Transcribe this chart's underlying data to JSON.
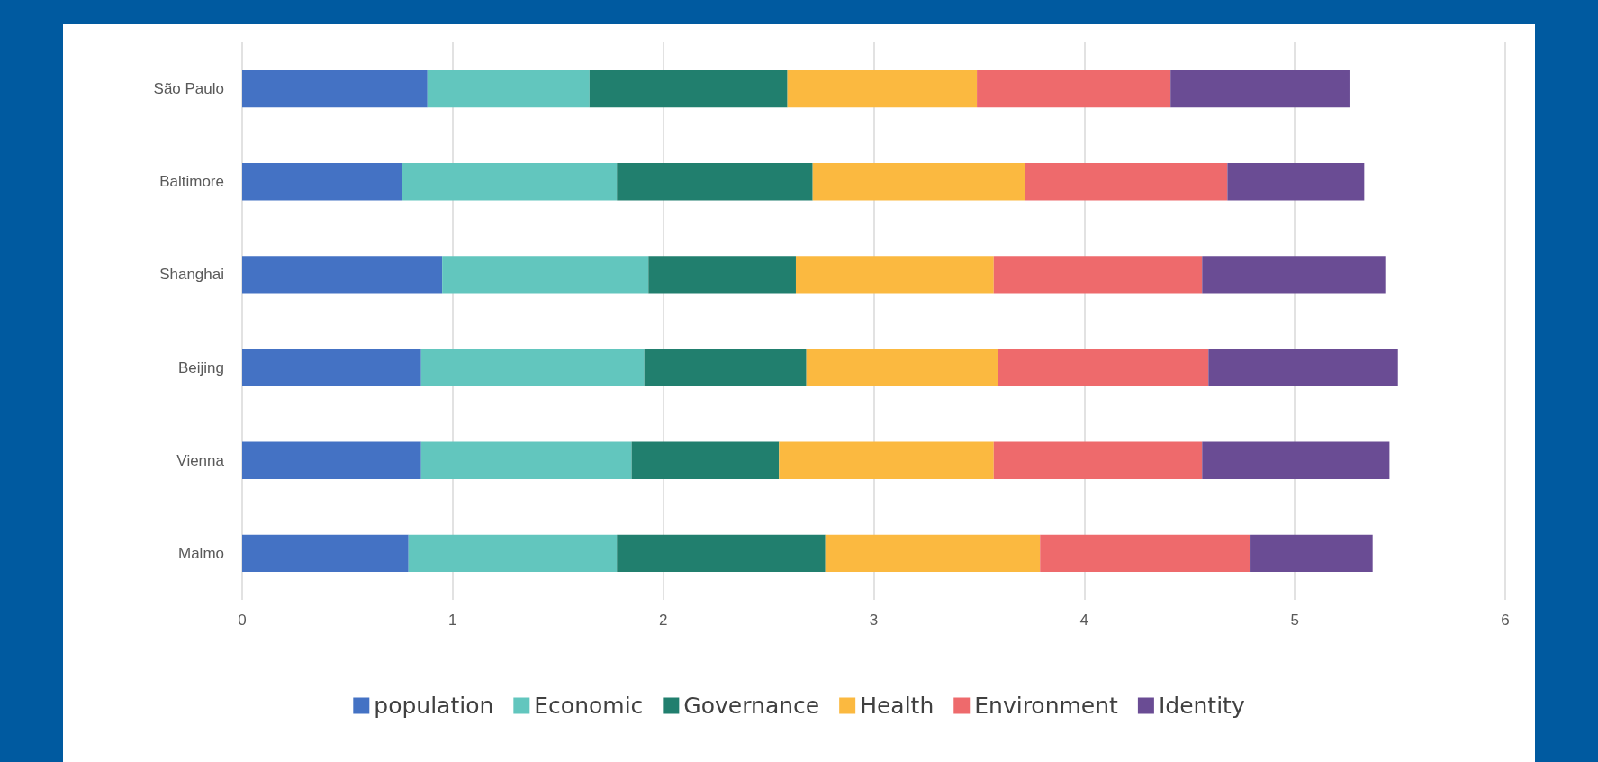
{
  "chart_data": {
    "type": "bar",
    "orientation": "horizontal",
    "stacked": true,
    "categories": [
      "São Paulo",
      "Baltimore",
      "Shanghai",
      "Beijing",
      "Vienna",
      "Malmo"
    ],
    "series": [
      {
        "name": "population",
        "color": "#4472c4",
        "values": [
          0.88,
          0.76,
          0.95,
          0.85,
          0.85,
          0.79
        ]
      },
      {
        "name": "Economic",
        "color": "#62c6be",
        "values": [
          0.77,
          1.02,
          0.98,
          1.06,
          1.0,
          0.99
        ]
      },
      {
        "name": "Governance",
        "color": "#217f6e",
        "values": [
          0.94,
          0.93,
          0.7,
          0.77,
          0.7,
          0.99
        ]
      },
      {
        "name": "Health",
        "color": "#fbb940",
        "values": [
          0.9,
          1.01,
          0.94,
          0.91,
          1.02,
          1.02
        ]
      },
      {
        "name": "Environment",
        "color": "#ee6a6c",
        "values": [
          0.92,
          0.96,
          0.99,
          1.0,
          0.99,
          1.0
        ]
      },
      {
        "name": "Identity",
        "color": "#6a4c94",
        "values": [
          0.85,
          0.65,
          0.87,
          0.9,
          0.89,
          0.58
        ]
      }
    ],
    "xlim": [
      0,
      6
    ],
    "xticks": [
      0,
      1,
      2,
      3,
      4,
      5,
      6
    ],
    "grid": "x",
    "legend": "bottom"
  }
}
